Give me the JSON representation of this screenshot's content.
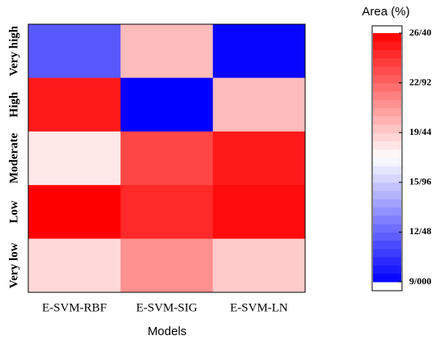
{
  "chart_data": {
    "type": "heatmap",
    "xlabel": "Models",
    "colorbar_label": "Area (%)",
    "x_categories": [
      "E-SVM-RBF",
      "E-SVM-SIG",
      "E-SVM-LN"
    ],
    "y_categories": [
      "Very high",
      "High",
      "Moderate",
      "Low",
      "Very low"
    ],
    "values": [
      [
        12.0,
        20.0,
        9.2
      ],
      [
        25.5,
        9.0,
        20.0
      ],
      [
        18.5,
        24.0,
        25.5
      ],
      [
        26.4,
        25.0,
        26.0
      ],
      [
        19.0,
        21.5,
        19.5
      ]
    ],
    "cmap": [
      "#0000ff",
      "#ffffff",
      "#ff0000"
    ],
    "clim": [
      9.0,
      26.4
    ],
    "cticks": [
      {
        "value": 26.4,
        "label": "26/40"
      },
      {
        "value": 22.92,
        "label": "22/92"
      },
      {
        "value": 19.44,
        "label": "19/44"
      },
      {
        "value": 15.96,
        "label": "15/96"
      },
      {
        "value": 12.48,
        "label": "12/48"
      },
      {
        "value": 9.0,
        "label": "9/000"
      }
    ]
  }
}
